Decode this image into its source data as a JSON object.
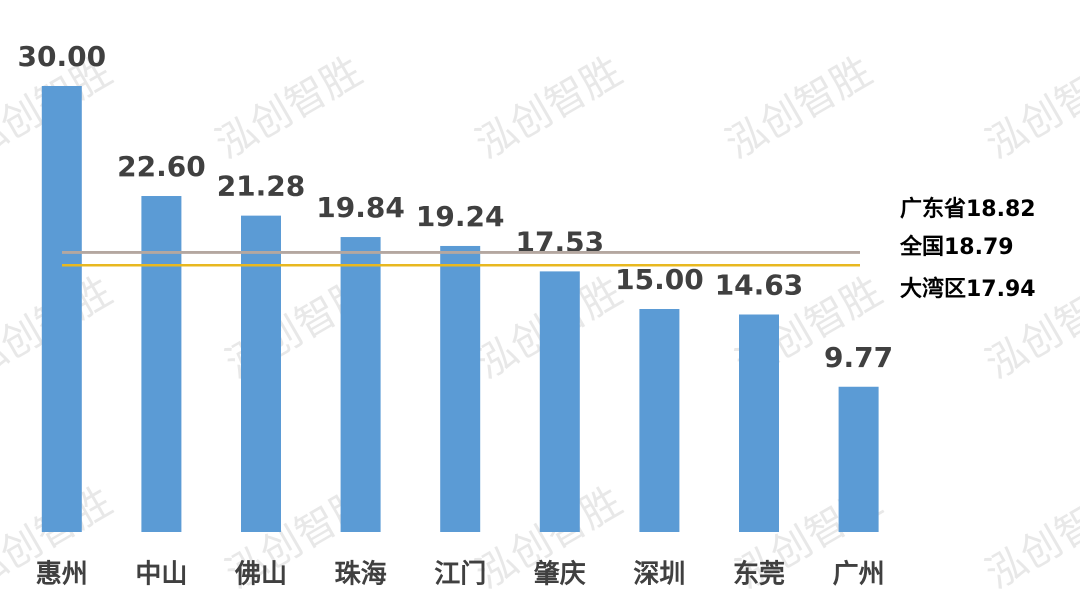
{
  "chart_data": {
    "type": "bar",
    "watermark": "泓创智胜",
    "categories": [
      "惠州",
      "中山",
      "佛山",
      "珠海",
      "江门",
      "肇庆",
      "深圳",
      "东莞",
      "广州"
    ],
    "values": [
      30,
      22.6,
      21.28,
      19.84,
      19.24,
      17.53,
      15,
      14.63,
      9.77
    ],
    "value_labels": [
      "30.00",
      "22.60",
      "21.28",
      "19.84",
      "19.24",
      "17.53",
      "15.00",
      "14.63",
      "9.77"
    ],
    "color": "#5b9bd5",
    "ylim": [
      0,
      30
    ],
    "reference_lines": [
      {
        "value": 18.82,
        "label": "广东省18.82",
        "color": "#b4a7a0"
      },
      {
        "value": 18.79,
        "label": "全国18.79",
        "color": "#b4a7a0"
      },
      {
        "value": 17.94,
        "label": "大湾区17.94",
        "color": "#e8b820"
      }
    ]
  }
}
